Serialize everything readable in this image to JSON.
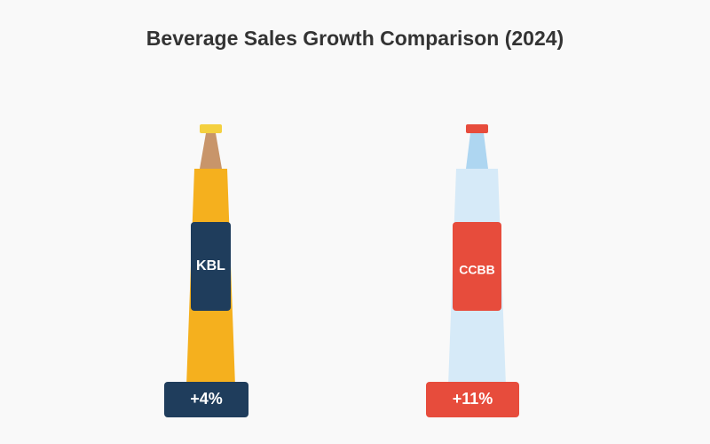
{
  "chart_data": {
    "type": "bar",
    "title": "Beverage Sales Growth Comparison (2024)",
    "xlabel": "",
    "ylabel": "",
    "categories": [
      "KBL",
      "CCBB"
    ],
    "values": [
      4,
      11
    ],
    "value_labels": [
      "+4%",
      "+11%"
    ],
    "grid": false,
    "legend": "none"
  },
  "colors": {
    "background": "#f9f9f9",
    "title": "#333333",
    "kbl_cap": "#f4d03f",
    "kbl_neck": "#c8956a",
    "kbl_body": "#f5b01e",
    "kbl_label": "#1f3d5c",
    "ccbb_cap": "#e74c3c",
    "ccbb_neck": "#aed6f1",
    "ccbb_body": "#d6eaf8",
    "ccbb_label": "#e74c3c",
    "label_text": "#ffffff"
  }
}
